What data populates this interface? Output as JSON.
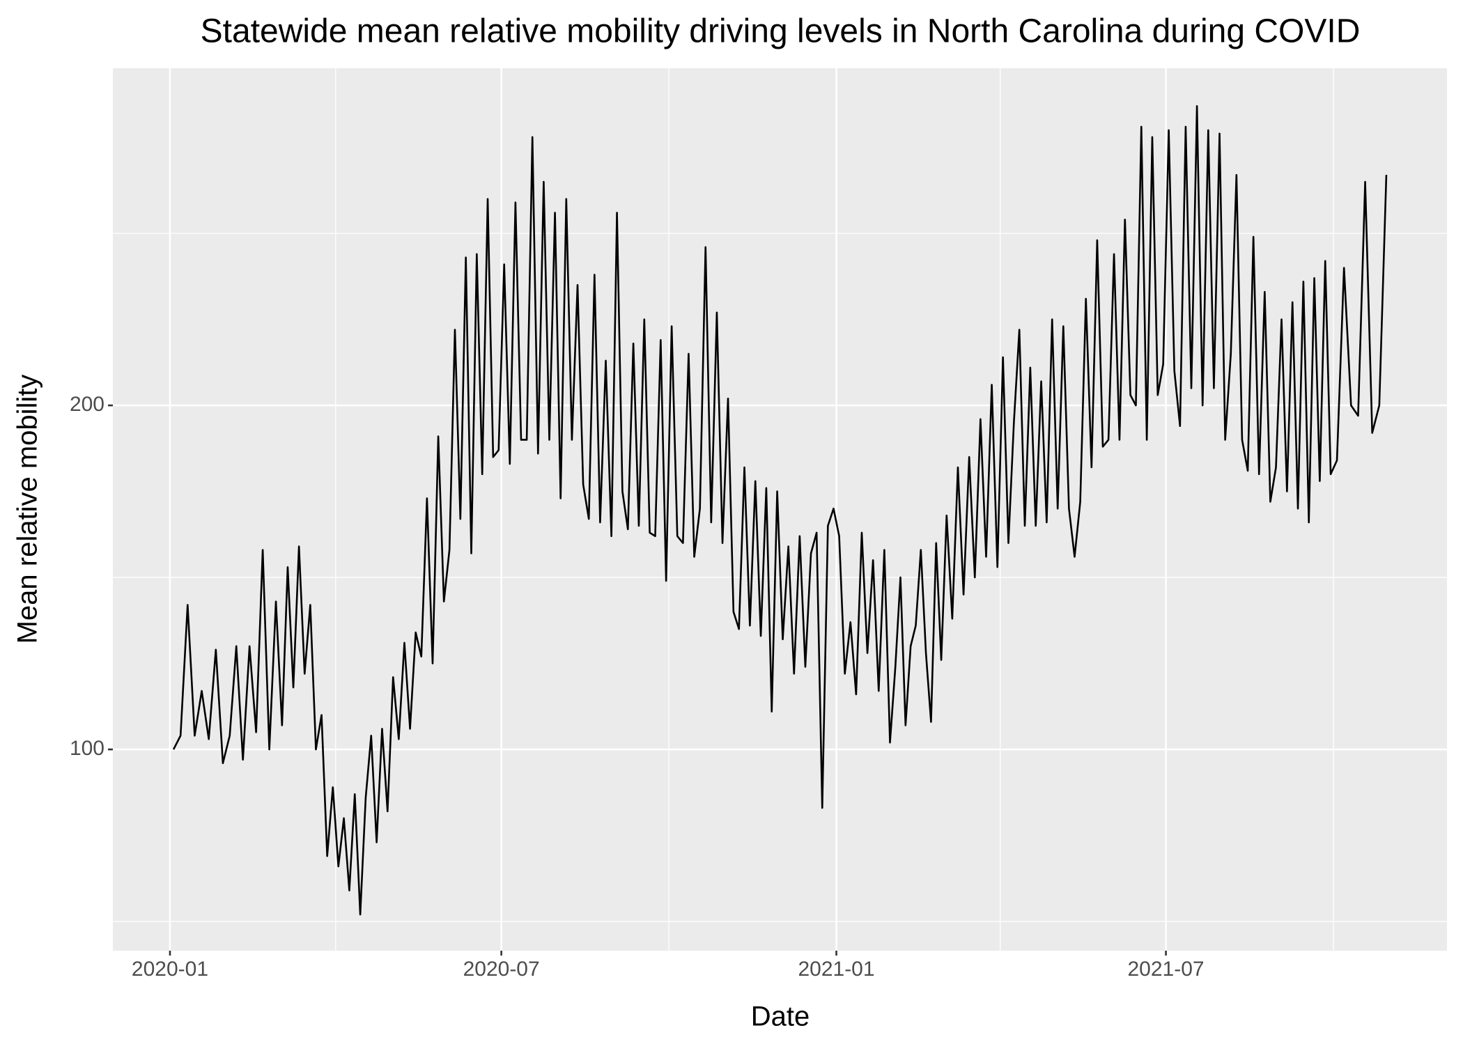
{
  "chart_data": {
    "type": "line",
    "title": "Statewide mean relative mobility driving levels in North Carolina during COVID",
    "x_label": "Date",
    "y_label": "Mean relative mobility",
    "color": "#000000",
    "grid": true,
    "ylim": [
      41.5,
      298
    ],
    "yticks": [
      100,
      200
    ],
    "minor_yticks": [
      50,
      150,
      250
    ],
    "xticks": [
      "2020-01",
      "2020-07",
      "2021-01",
      "2021-07"
    ],
    "minor_xticks": [
      "2020-04",
      "2020-10",
      "2021-04",
      "2021-10"
    ],
    "months": [
      {
        "month": "2020-01",
        "values": [
          100,
          104,
          142,
          104,
          117,
          103,
          129,
          96
        ]
      },
      {
        "month": "2020-02",
        "values": [
          104,
          130,
          97,
          130,
          105,
          158,
          100,
          143
        ]
      },
      {
        "month": "2020-03",
        "values": [
          107,
          153,
          118,
          159,
          122,
          142,
          100,
          110,
          69,
          89
        ]
      },
      {
        "month": "2020-04",
        "values": [
          66,
          80,
          59,
          87,
          52,
          86,
          104,
          73,
          106,
          82
        ]
      },
      {
        "month": "2020-05",
        "values": [
          121,
          103,
          131,
          106,
          134,
          127,
          173,
          125,
          191,
          143
        ]
      },
      {
        "month": "2020-06",
        "values": [
          158,
          222,
          167,
          243,
          157,
          244,
          180,
          260,
          185,
          187
        ]
      },
      {
        "month": "2020-07",
        "values": [
          241,
          183,
          259,
          190,
          190,
          278,
          186,
          265,
          190,
          256
        ]
      },
      {
        "month": "2020-08",
        "values": [
          173,
          260,
          190,
          235,
          177,
          167,
          238,
          166,
          213,
          162
        ]
      },
      {
        "month": "2020-09",
        "values": [
          256,
          175,
          164,
          218,
          165,
          225,
          163,
          162,
          219,
          149
        ]
      },
      {
        "month": "2020-10",
        "values": [
          223,
          162,
          160,
          215,
          156,
          170,
          246,
          166,
          227,
          160
        ]
      },
      {
        "month": "2020-11",
        "values": [
          202,
          140,
          135,
          182,
          136,
          178,
          133,
          176,
          111,
          175
        ]
      },
      {
        "month": "2020-12",
        "values": [
          132,
          159,
          122,
          162,
          124,
          157,
          163,
          83,
          165,
          170
        ]
      },
      {
        "month": "2021-01",
        "values": [
          162,
          122,
          137,
          116,
          163,
          128,
          155,
          117,
          158,
          102
        ]
      },
      {
        "month": "2021-02",
        "values": [
          124,
          150,
          107,
          130,
          136,
          158,
          128,
          108,
          160,
          126
        ]
      },
      {
        "month": "2021-03",
        "values": [
          168,
          138,
          182,
          145,
          185,
          150,
          196,
          156,
          206,
          153
        ]
      },
      {
        "month": "2021-04",
        "values": [
          214,
          160,
          195,
          222,
          165,
          211,
          165,
          207,
          166,
          225
        ]
      },
      {
        "month": "2021-05",
        "values": [
          170,
          223,
          170,
          156,
          172,
          231,
          182,
          248,
          188,
          190
        ]
      },
      {
        "month": "2021-06",
        "values": [
          244,
          190,
          254,
          203,
          200,
          281,
          190,
          278,
          203,
          212
        ]
      },
      {
        "month": "2021-07",
        "values": [
          280,
          210,
          194,
          281,
          205,
          287,
          200,
          280,
          205,
          279
        ]
      },
      {
        "month": "2021-08",
        "values": [
          190,
          215,
          267,
          190,
          181,
          249,
          180,
          233,
          172,
          182
        ]
      },
      {
        "month": "2021-09",
        "values": [
          225,
          175,
          230,
          170,
          236,
          166,
          237,
          178,
          242,
          180
        ]
      },
      {
        "month": "2021-10",
        "values": [
          184,
          240,
          200,
          197,
          265,
          192,
          200,
          267
        ]
      }
    ]
  }
}
